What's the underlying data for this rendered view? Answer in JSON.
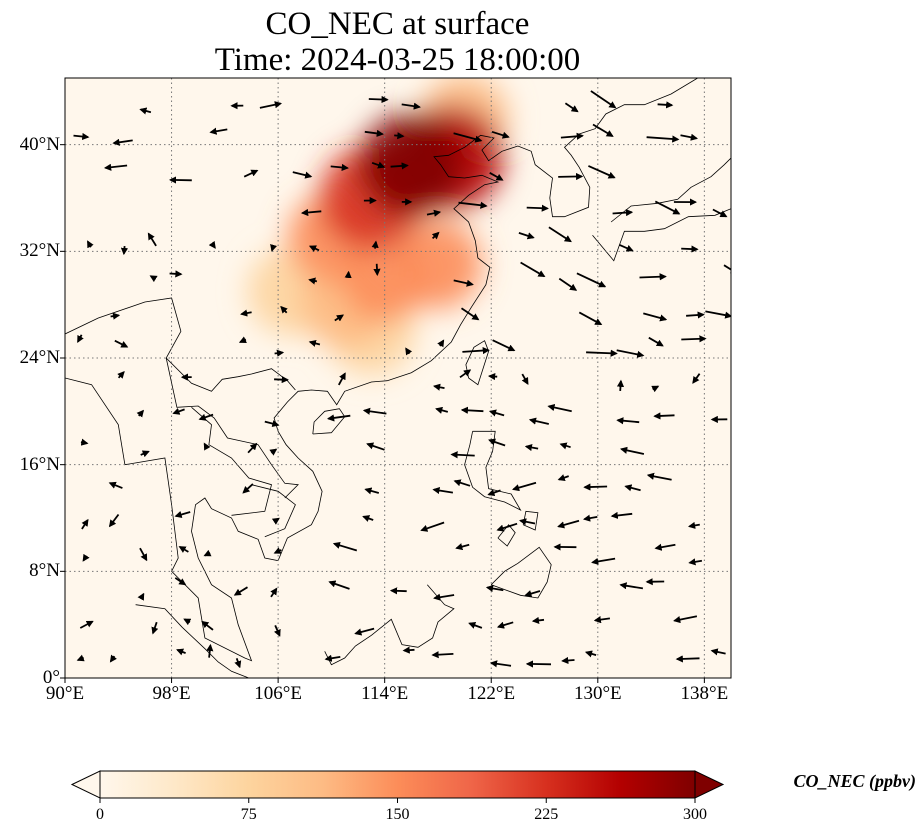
{
  "title": {
    "line1": "CO_NEC at surface",
    "line2": "Time: 2024-03-25 18:00:00"
  },
  "map": {
    "projection": "PlateCarree",
    "lon_range": [
      90,
      140
    ],
    "lat_range": [
      0,
      45
    ],
    "gridlines": "dotted",
    "coastlines": true,
    "borders": true
  },
  "axes": {
    "x_ticks": [
      "90°E",
      "98°E",
      "106°E",
      "114°E",
      "122°E",
      "130°E",
      "138°E"
    ],
    "y_ticks": [
      "0°",
      "8°N",
      "16°N",
      "24°N",
      "32°N",
      "40°N"
    ]
  },
  "colorbar": {
    "label": "CO_NEC (ppbv)",
    "ticks": [
      "0",
      "75",
      "150",
      "225",
      "300"
    ],
    "min": 0,
    "max": 300,
    "extend": "both",
    "colormap": "OrRd",
    "colors": [
      "#fff7ec",
      "#fee8c8",
      "#fdd49e",
      "#fdbb84",
      "#fc8d59",
      "#ef6548",
      "#d7301f",
      "#b30000",
      "#7f0000"
    ]
  },
  "field": {
    "plumes": [
      {
        "lon": 116,
        "lat": 38.5,
        "value": 300
      },
      {
        "lon": 113,
        "lat": 36,
        "value": 230
      },
      {
        "lon": 119,
        "lat": 39,
        "value": 260
      },
      {
        "lon": 110,
        "lat": 33,
        "value": 160
      },
      {
        "lon": 114,
        "lat": 30,
        "value": 150
      },
      {
        "lon": 118,
        "lat": 31,
        "value": 150
      },
      {
        "lon": 111,
        "lat": 28,
        "value": 130
      },
      {
        "lon": 113,
        "lat": 26,
        "value": 90
      },
      {
        "lon": 107,
        "lat": 29,
        "value": 70
      },
      {
        "lon": 120,
        "lat": 42,
        "value": 110
      }
    ]
  }
}
